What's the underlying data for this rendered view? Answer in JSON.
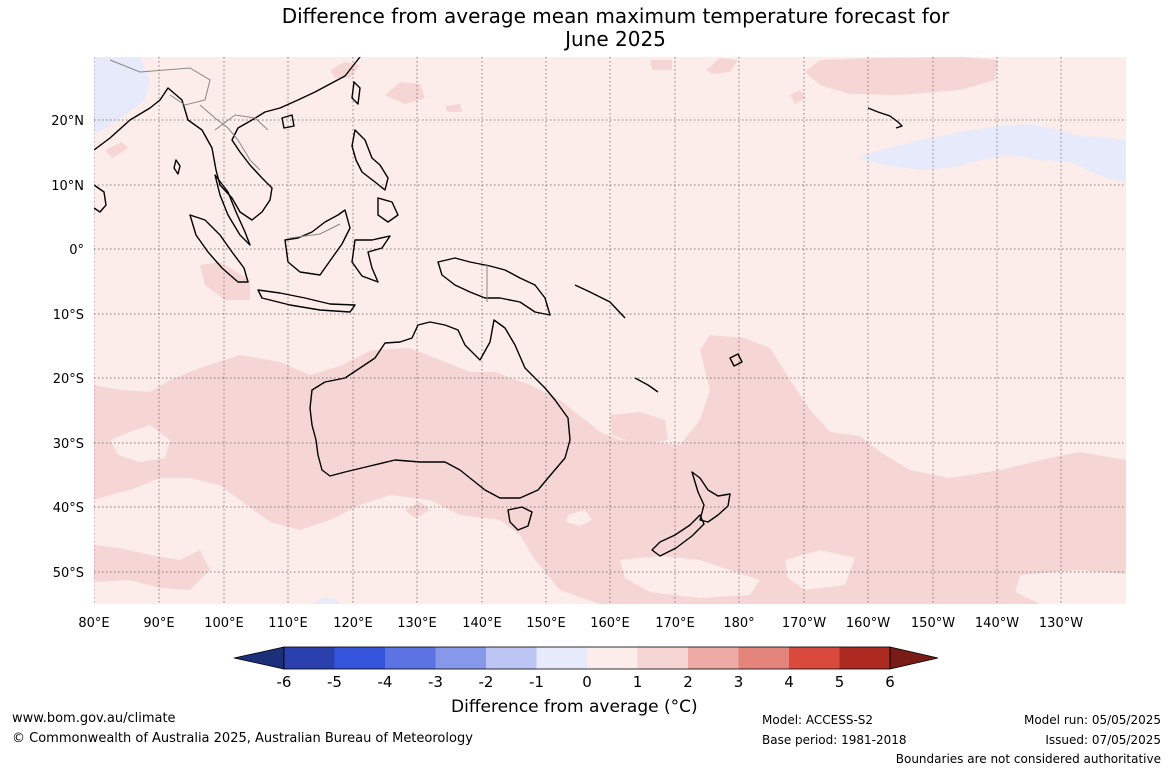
{
  "title_line1": "Difference from average mean maximum temperature forecast for",
  "title_line2": "June 2025",
  "lat_labels": [
    "20°N",
    "10°N",
    "0°",
    "10°S",
    "20°S",
    "30°S",
    "40°S",
    "50°S"
  ],
  "lon_labels": [
    "80°E",
    "90°E",
    "100°E",
    "110°E",
    "120°E",
    "130°E",
    "140°E",
    "150°E",
    "160°E",
    "170°E",
    "180°",
    "170°W",
    "160°W",
    "150°W",
    "140°W",
    "130°W"
  ],
  "colorbar": {
    "title": "Difference from average (°C)",
    "ticks": [
      "-6",
      "-5",
      "-4",
      "-3",
      "-2",
      "-1",
      "0",
      "1",
      "2",
      "3",
      "4",
      "5",
      "6"
    ],
    "colors": [
      "#1b2f7a",
      "#2a40ad",
      "#3454dc",
      "#5b73e3",
      "#8797ea",
      "#bcc5f3",
      "#e7eafb",
      "#fcecea",
      "#f6d6d4",
      "#eeaaa4",
      "#e5847b",
      "#da4a3c",
      "#ac2a20",
      "#7a1c16"
    ]
  },
  "map_fills": {
    "base": "#fcecea",
    "warm": "#f6d6d4",
    "cool": "#e7eafb",
    "land_outline": "#000000",
    "border_outline": "#888888"
  },
  "footer": {
    "website": "www.bom.gov.au/climate",
    "copyright": "© Commonwealth of Australia 2025, Australian Bureau of Meteorology",
    "model": "Model: ACCESS-S2",
    "base_period": "Base period: 1981-2018",
    "model_run": "Model run: 05/05/2025",
    "issued": "Issued: 07/05/2025",
    "disclaimer": "Boundaries are not considered authoritative"
  }
}
